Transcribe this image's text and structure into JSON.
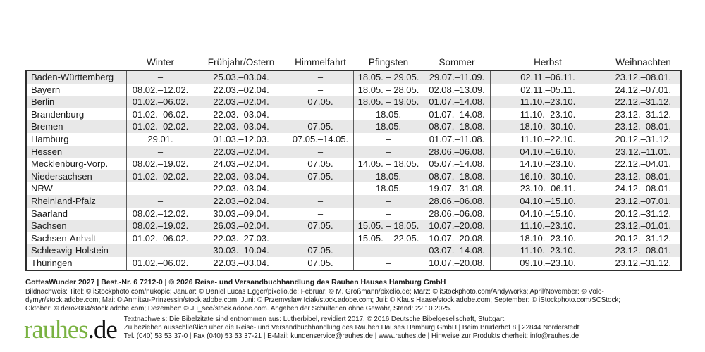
{
  "table": {
    "columns": [
      "Winter",
      "Frühjahr/Ostern",
      "Himmelfahrt",
      "Pfingsten",
      "Sommer",
      "Herbst",
      "Weihnachten"
    ],
    "rows": [
      {
        "state": "Baden-Württemberg",
        "values": [
          "–",
          "25.03.–03.04.",
          "–",
          "18.05. – 29.05.",
          "29.07.–11.09.",
          "02.11.–06.11.",
          "23.12.–08.01."
        ]
      },
      {
        "state": "Bayern",
        "values": [
          "08.02.–12.02.",
          "22.03.–02.04.",
          "–",
          "18.05. – 28.05.",
          "02.08.–13.09.",
          "02.11.–05.11.",
          "24.12.–07.01."
        ]
      },
      {
        "state": "Berlin",
        "values": [
          "01.02.–06.02.",
          "22.03.–02.04.",
          "07.05.",
          "18.05. – 19.05.",
          "01.07.–14.08.",
          "11.10.–23.10.",
          "22.12.–31.12."
        ]
      },
      {
        "state": "Brandenburg",
        "values": [
          "01.02.–06.02.",
          "22.03.–03.04.",
          "–",
          "18.05.",
          "01.07.–14.08.",
          "11.10.–23.10.",
          "23.12.–31.12."
        ]
      },
      {
        "state": "Bremen",
        "values": [
          "01.02.–02.02.",
          "22.03.–03.04.",
          "07.05.",
          "18.05.",
          "08.07.–18.08.",
          "18.10.–30.10.",
          "23.12.–08.01."
        ]
      },
      {
        "state": "Hamburg",
        "values": [
          "29.01.",
          "01.03.–12.03.",
          "07.05.–14.05.",
          "–",
          "01.07.–11.08.",
          "11.10.–22.10.",
          "20.12.–31.12."
        ]
      },
      {
        "state": "Hessen",
        "values": [
          "–",
          "22.03.–02.04.",
          "–",
          "–",
          "28.06.–06.08.",
          "04.10.–16.10.",
          "23.12.–11.01."
        ]
      },
      {
        "state": "Mecklenburg-Vorp.",
        "values": [
          "08.02.–19.02.",
          "24.03.–02.04.",
          "07.05.",
          "14.05. – 18.05.",
          "05.07.–14.08.",
          "14.10.–23.10.",
          "22.12.–04.01."
        ]
      },
      {
        "state": "Niedersachsen",
        "values": [
          "01.02.–02.02.",
          "22.03.–03.04.",
          "07.05.",
          "18.05.",
          "08.07.–18.08.",
          "16.10.–30.10.",
          "23.12.–08.01."
        ]
      },
      {
        "state": "NRW",
        "values": [
          "–",
          "22.03.–03.04.",
          "–",
          "18.05.",
          "19.07.–31.08.",
          "23.10.–06.11.",
          "24.12.–08.01."
        ]
      },
      {
        "state": "Rheinland-Pfalz",
        "values": [
          "–",
          "22.03.–02.04.",
          "–",
          "–",
          "28.06.–06.08.",
          "04.10.–15.10.",
          "23.12.–07.01."
        ]
      },
      {
        "state": "Saarland",
        "values": [
          "08.02.–12.02.",
          "30.03.–09.04.",
          "–",
          "–",
          "28.06.–06.08.",
          "04.10.–15.10.",
          "20.12.–31.12."
        ]
      },
      {
        "state": "Sachsen",
        "values": [
          "08.02.–19.02.",
          "26.03.–02.04.",
          "07.05.",
          "15.05. – 18.05.",
          "10.07.–20.08.",
          "11.10.–23.10.",
          "23.12.–01.01."
        ]
      },
      {
        "state": "Sachsen-Anhalt",
        "values": [
          "01.02.–06.02.",
          "22.03.–27.03.",
          "–",
          "15.05. – 22.05.",
          "10.07.–20.08.",
          "18.10.–23.10.",
          "20.12.–31.12."
        ]
      },
      {
        "state": "Schleswig-Holstein",
        "values": [
          "–",
          "30.03.–10.04.",
          "07.05.",
          "–",
          "03.07.–14.08.",
          "11.10.–23.10.",
          "23.12.–08.01."
        ]
      },
      {
        "state": "Thüringen",
        "values": [
          "01.02.–06.02.",
          "22.03.–03.04.",
          "07.05.",
          "–",
          "10.07.–20.08.",
          "09.10.–23.10.",
          "23.12.–31.12."
        ]
      }
    ]
  },
  "footer": {
    "product_line": "GottesWunder 2027 | Best.-Nr. 6 7212-0 | © 2026 Reise- und Versandbuchhandlung des Rauhen Hauses Hamburg GmbH",
    "bildnachweis_lines": [
      "Bildnachweis: Titel: © iStockphoto.com/nukopic; Januar: © Daniel Lucas Egger/pixelio.de; Februar: © M. Großmann/pixelio.de; März: © iStockphoto.com/Andyworks; April/November: © Volo-",
      "dymyr/stock.adobe.com; Mai: © Anmitsu-Prinzessin/stock.adobe.com; Juni: © Przemyslaw Iciak/stock.adobe.com; Juli: © Klaus Haase/stock.adobe.com; September: © iStockphoto.com/SCStock;",
      "Oktober: © dero2084/stock.adobe.com; Dezember: © Ju_see/stock.adobe.com. Angaben der Schulferien ohne Gewähr, Stand: 22.10.2025."
    ],
    "textnachweis_lines": [
      "Textnachweis: Die Bibelzitate sind entnommen aus: Lutherbibel, revidiert 2017, © 2016 Deutsche Bibelgesellschaft, Stuttgart.",
      "Zu beziehen ausschließlich über die Reise- und Versandbuchhandlung des Rauhen Hauses Hamburg GmbH | Beim Brüderhof 8 | 22844 Norderstedt",
      "Tel. (040) 53 53 37-0 | Fax (040) 53 53 37-21 | E-Mail: kundenservice@rauhes.de | www.rauhes.de | Hinweise zur Produktsicherheit: info@rauhes.de"
    ]
  },
  "logo": {
    "name": "rauhes",
    "tld": ".de"
  },
  "colors": {
    "row_shade": "#e8e8e8",
    "table_border": "#2e2e2e",
    "grid_line": "#595959",
    "text": "#1a1a1a",
    "logo_green": "#79b241"
  }
}
